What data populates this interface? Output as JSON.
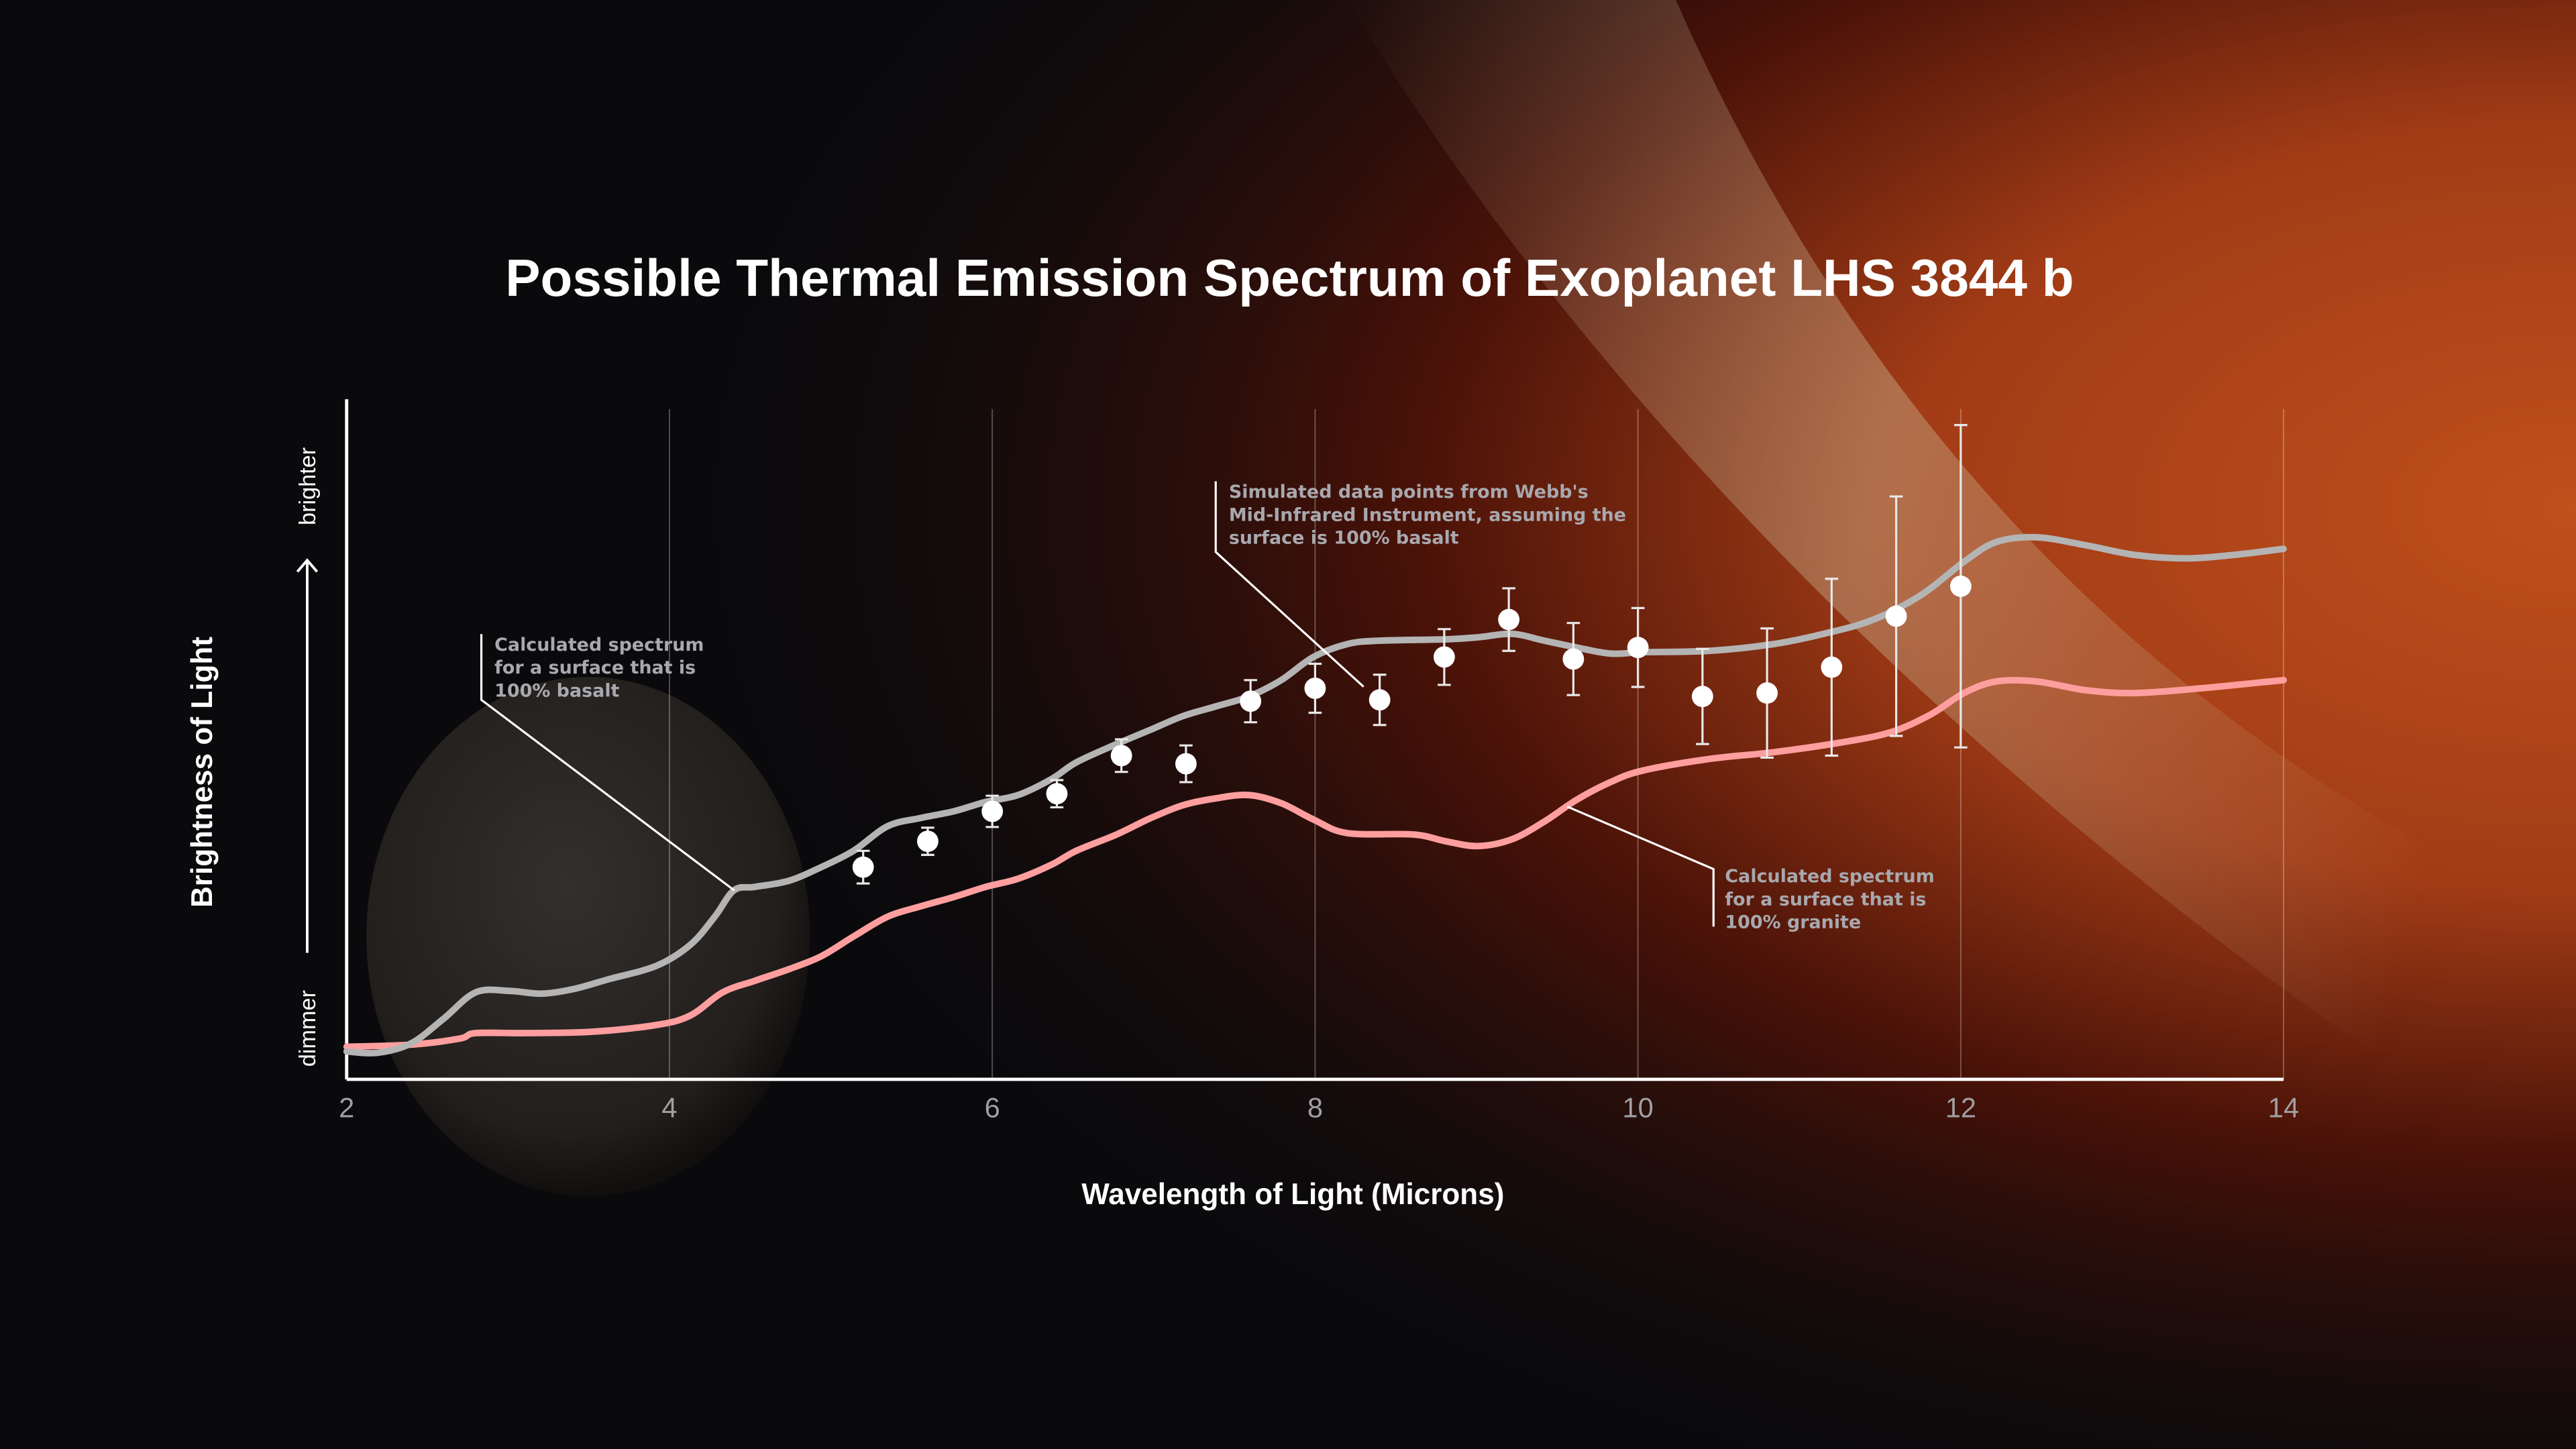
{
  "chart_data": {
    "type": "line",
    "title": "Possible Thermal Emission Spectrum of Exoplanet LHS 3844 b",
    "xlabel": "Wavelength of Light (Microns)",
    "ylabel": "Brightness of Light",
    "y_low_label": "dimmer",
    "y_high_label": "brighter",
    "xlim": [
      2,
      14
    ],
    "ylim": [
      0,
      1
    ],
    "x_ticks": [
      "2",
      "4",
      "6",
      "8",
      "10",
      "12",
      "14"
    ],
    "grid": "vertical lines at major x ticks",
    "legend": "none (annotations with leader lines)",
    "colors": {
      "basalt": "#b4b4b4",
      "granite": "#ff9e9e",
      "data_points": "#ffffff"
    },
    "series": [
      {
        "name": "Calculated spectrum for a surface that is 100% basalt",
        "kind": "line",
        "x": [
          2.0,
          2.19,
          2.4,
          2.6,
          2.8,
          3.01,
          3.21,
          3.41,
          3.62,
          3.92,
          4.13,
          4.28,
          4.4,
          4.53,
          4.74,
          4.94,
          5.14,
          5.35,
          5.55,
          5.76,
          5.96,
          6.16,
          6.37,
          6.52,
          6.77,
          6.98,
          7.18,
          7.38,
          7.59,
          7.79,
          7.99,
          8.2,
          8.4,
          8.81,
          9.01,
          9.22,
          9.42,
          9.62,
          9.83,
          10.03,
          10.44,
          10.84,
          11.15,
          11.46,
          11.76,
          12.02,
          12.22,
          12.47,
          12.78,
          13.08,
          13.39,
          13.69,
          14.0
        ],
        "y": [
          0.041,
          0.039,
          0.053,
          0.089,
          0.128,
          0.13,
          0.126,
          0.133,
          0.147,
          0.167,
          0.198,
          0.239,
          0.278,
          0.283,
          0.292,
          0.312,
          0.336,
          0.372,
          0.384,
          0.394,
          0.408,
          0.418,
          0.442,
          0.466,
          0.493,
          0.514,
          0.534,
          0.548,
          0.563,
          0.587,
          0.621,
          0.64,
          0.645,
          0.647,
          0.65,
          0.655,
          0.645,
          0.635,
          0.626,
          0.628,
          0.63,
          0.64,
          0.655,
          0.676,
          0.713,
          0.761,
          0.79,
          0.797,
          0.785,
          0.771,
          0.766,
          0.771,
          0.78
        ]
      },
      {
        "name": "Calculated spectrum for a surface that is 100% granite",
        "kind": "line",
        "x": [
          2.0,
          2.4,
          2.7,
          2.8,
          3.11,
          3.52,
          3.92,
          4.13,
          4.33,
          4.53,
          4.74,
          4.94,
          5.14,
          5.35,
          5.55,
          5.76,
          5.96,
          6.16,
          6.37,
          6.52,
          6.77,
          6.98,
          7.18,
          7.38,
          7.59,
          7.79,
          7.99,
          8.2,
          8.61,
          8.81,
          9.01,
          9.22,
          9.42,
          9.62,
          9.83,
          10.03,
          10.44,
          10.84,
          11.25,
          11.56,
          11.81,
          12.02,
          12.22,
          12.47,
          12.78,
          13.08,
          13.49,
          14.0
        ],
        "y": [
          0.048,
          0.051,
          0.06,
          0.068,
          0.068,
          0.07,
          0.08,
          0.094,
          0.128,
          0.145,
          0.162,
          0.181,
          0.21,
          0.239,
          0.254,
          0.268,
          0.283,
          0.295,
          0.316,
          0.336,
          0.36,
          0.384,
          0.403,
          0.413,
          0.418,
          0.406,
          0.382,
          0.362,
          0.36,
          0.35,
          0.343,
          0.353,
          0.379,
          0.411,
          0.437,
          0.454,
          0.471,
          0.481,
          0.495,
          0.51,
          0.536,
          0.568,
          0.585,
          0.585,
          0.572,
          0.568,
          0.575,
          0.587
        ]
      },
      {
        "name": "Simulated data points from Webb's Mid-Infrared Instrument, assuming the surface is 100% basalt",
        "kind": "scatter-errorbars",
        "x": [
          5.2,
          5.6,
          6.0,
          6.4,
          6.8,
          7.2,
          7.6,
          8.0,
          8.4,
          8.8,
          9.2,
          9.6,
          10.0,
          10.4,
          10.8,
          11.2,
          11.6,
          12.0
        ],
        "y": [
          0.312,
          0.35,
          0.394,
          0.42,
          0.476,
          0.464,
          0.556,
          0.575,
          0.558,
          0.621,
          0.676,
          0.618,
          0.635,
          0.563,
          0.568,
          0.606,
          0.681,
          0.725
        ],
        "err": [
          0.024,
          0.02,
          0.023,
          0.02,
          0.024,
          0.027,
          0.031,
          0.036,
          0.037,
          0.041,
          0.046,
          0.053,
          0.058,
          0.07,
          0.095,
          0.13,
          0.176,
          0.237
        ]
      }
    ],
    "annotations": {
      "basalt": [
        "Calculated spectrum",
        "for a surface that is",
        "100% basalt"
      ],
      "data": [
        "Simulated data points from Webb's",
        "Mid-Infrared Instrument, assuming the",
        "surface is 100% basalt"
      ],
      "granite": [
        "Calculated spectrum",
        "for a surface that is",
        "100% granite"
      ]
    }
  }
}
